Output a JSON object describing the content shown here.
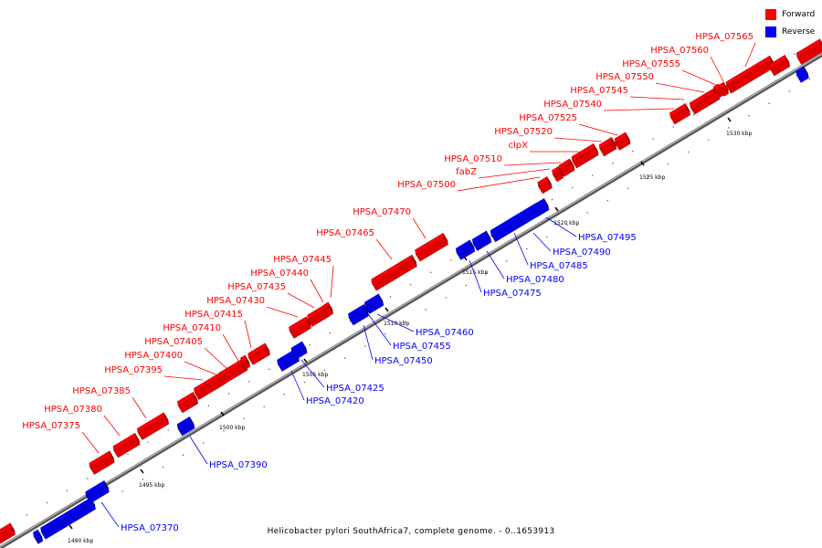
{
  "legend": {
    "forward_label": "Forward",
    "reverse_label": "Reverse",
    "forward_color": "#ff0000",
    "reverse_color": "#0000ff"
  },
  "caption": "Helicobacter pylori SouthAfrica7, complete genome. - 0..1653913",
  "ticks": [
    "1490 kbp",
    "1495 kbp",
    "1500 kbp",
    "1505 kbp",
    "1510 kbp",
    "1515 kbp",
    "1520 kbp",
    "1525 kbp",
    "1530 kbp"
  ],
  "forward_genes": [
    "HPSA_07375",
    "HPSA_07380",
    "HPSA_07385",
    "HPSA_07395",
    "HPSA_07400",
    "HPSA_07405",
    "HPSA_07410",
    "HPSA_07415",
    "HPSA_07430",
    "HPSA_07435",
    "HPSA_07440",
    "HPSA_07445",
    "HPSA_07465",
    "HPSA_07470",
    "HPSA_07500",
    "fabZ",
    "HPSA_07510",
    "clpX",
    "HPSA_07520",
    "HPSA_07525",
    "HPSA_07540",
    "HPSA_07545",
    "HPSA_07550",
    "HPSA_07555",
    "HPSA_07560",
    "HPSA_07565"
  ],
  "reverse_genes": [
    "HPSA_07370",
    "HPSA_07390",
    "HPSA_07420",
    "HPSA_07425",
    "HPSA_07450",
    "HPSA_07455",
    "HPSA_07460",
    "HPSA_07475",
    "HPSA_07480",
    "HPSA_07485",
    "HPSA_07490",
    "HPSA_07495"
  ]
}
